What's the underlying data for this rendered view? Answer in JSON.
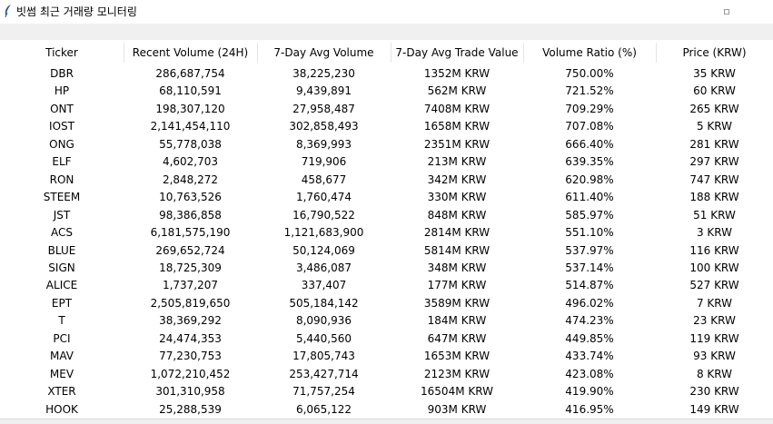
{
  "window": {
    "title": "빗썸 최근 거래량 모니터링",
    "icon": "feather-icon"
  },
  "table": {
    "columns": [
      "Ticker",
      "Recent Volume (24H)",
      "7-Day Avg Volume",
      "7-Day Avg Trade Value",
      "Volume Ratio (%)",
      "Price (KRW)"
    ],
    "rows": [
      [
        "DBR",
        "286,687,754",
        "38,225,230",
        "1352M KRW",
        "750.00%",
        "35 KRW"
      ],
      [
        "HP",
        "68,110,591",
        "9,439,891",
        "562M KRW",
        "721.52%",
        "60 KRW"
      ],
      [
        "ONT",
        "198,307,120",
        "27,958,487",
        "7408M KRW",
        "709.29%",
        "265 KRW"
      ],
      [
        "IOST",
        "2,141,454,110",
        "302,858,493",
        "1658M KRW",
        "707.08%",
        "5 KRW"
      ],
      [
        "ONG",
        "55,778,038",
        "8,369,993",
        "2351M KRW",
        "666.40%",
        "281 KRW"
      ],
      [
        "ELF",
        "4,602,703",
        "719,906",
        "213M KRW",
        "639.35%",
        "297 KRW"
      ],
      [
        "RON",
        "2,848,272",
        "458,677",
        "342M KRW",
        "620.98%",
        "747 KRW"
      ],
      [
        "STEEM",
        "10,763,526",
        "1,760,474",
        "330M KRW",
        "611.40%",
        "188 KRW"
      ],
      [
        "JST",
        "98,386,858",
        "16,790,522",
        "848M KRW",
        "585.97%",
        "51 KRW"
      ],
      [
        "ACS",
        "6,181,575,190",
        "1,121,683,900",
        "2814M KRW",
        "551.10%",
        "3 KRW"
      ],
      [
        "BLUE",
        "269,652,724",
        "50,124,069",
        "5814M KRW",
        "537.97%",
        "116 KRW"
      ],
      [
        "SIGN",
        "18,725,309",
        "3,486,087",
        "348M KRW",
        "537.14%",
        "100 KRW"
      ],
      [
        "ALICE",
        "1,737,207",
        "337,407",
        "177M KRW",
        "514.87%",
        "527 KRW"
      ],
      [
        "EPT",
        "2,505,819,650",
        "505,184,142",
        "3589M KRW",
        "496.02%",
        "7 KRW"
      ],
      [
        "T",
        "38,369,292",
        "8,090,936",
        "184M KRW",
        "474.23%",
        "23 KRW"
      ],
      [
        "PCI",
        "24,474,353",
        "5,440,560",
        "647M KRW",
        "449.85%",
        "119 KRW"
      ],
      [
        "MAV",
        "77,230,753",
        "17,805,743",
        "1653M KRW",
        "433.74%",
        "93 KRW"
      ],
      [
        "MEV",
        "1,072,210,452",
        "253,427,714",
        "2123M KRW",
        "423.08%",
        "8 KRW"
      ],
      [
        "XTER",
        "301,310,958",
        "71,757,254",
        "16504M KRW",
        "419.90%",
        "230 KRW"
      ],
      [
        "HOOK",
        "25,288,539",
        "6,065,122",
        "903M KRW",
        "416.95%",
        "149 KRW"
      ]
    ]
  }
}
